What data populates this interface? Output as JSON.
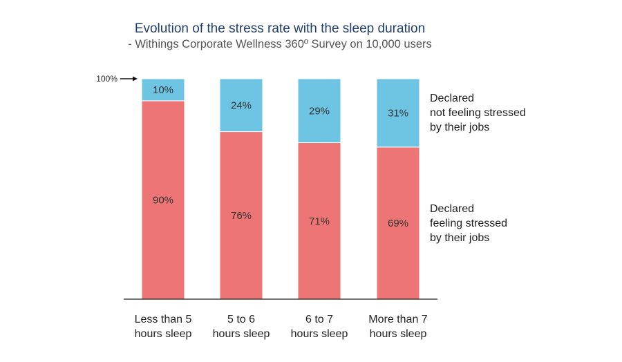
{
  "chart_data": {
    "type": "bar",
    "stacked": true,
    "title": "Evolution of the stress rate with the sleep duration",
    "subtitle": "- Withings Corporate Wellness 360º Survey on 10,000 users",
    "reference_label": "100%",
    "categories": [
      [
        "Less than 5",
        "hours sleep"
      ],
      [
        "5 to 6",
        "hours sleep"
      ],
      [
        "6 to 7",
        "hours sleep"
      ],
      [
        "More than 7",
        "hours sleep"
      ]
    ],
    "series": [
      {
        "name": [
          "Declared",
          "feeling stressed",
          "by their jobs"
        ],
        "values": [
          90,
          76,
          71,
          69
        ],
        "labels": [
          "90%",
          "76%",
          "71%",
          "69%"
        ],
        "color": "#ee7575"
      },
      {
        "name": [
          "Declared",
          "not feeling stressed",
          "by their jobs"
        ],
        "values": [
          10,
          24,
          29,
          31
        ],
        "labels": [
          "10%",
          "24%",
          "29%",
          "31%"
        ],
        "color": "#6ec4e3"
      }
    ],
    "ylim": [
      0,
      100
    ],
    "grid": false,
    "legend_position": "right"
  }
}
